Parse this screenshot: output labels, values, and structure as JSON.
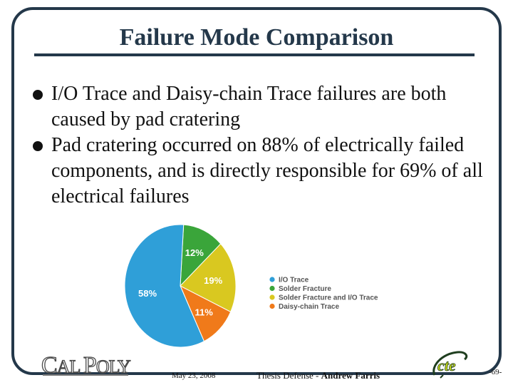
{
  "slide": {
    "title": "Failure Mode Comparison",
    "bullets": [
      "I/O Trace and Daisy-chain Trace failures are both caused by pad cratering",
      "Pad cratering occurred on 88% of electrically failed components, and is directly responsible for 69% of all electrical failures"
    ]
  },
  "chart_data": {
    "type": "pie",
    "slices": [
      {
        "label": "I/O Trace",
        "value": 58,
        "display": "58%",
        "color": "#2f9fd8"
      },
      {
        "label": "Solder Fracture",
        "value": 12,
        "display": "12%",
        "color": "#3aa53a"
      },
      {
        "label": "Solder Fracture and I/O Trace",
        "value": 19,
        "display": "19%",
        "color": "#d9c820"
      },
      {
        "label": "Daisy-chain Trace",
        "value": 11,
        "display": "11%",
        "color": "#f07a1a"
      }
    ],
    "legend_position": "right"
  },
  "footer": {
    "logo_text_1": "C",
    "logo_text_2": "AL ",
    "logo_text_3": "P",
    "logo_text_4": "OLY",
    "logo_name": "Cal Poly",
    "date": "May 23, 2008",
    "credit_prefix": "Thesis Defense - ",
    "credit_name": "Andrew Farris",
    "page": "-69-",
    "cte_logo": "cte"
  }
}
